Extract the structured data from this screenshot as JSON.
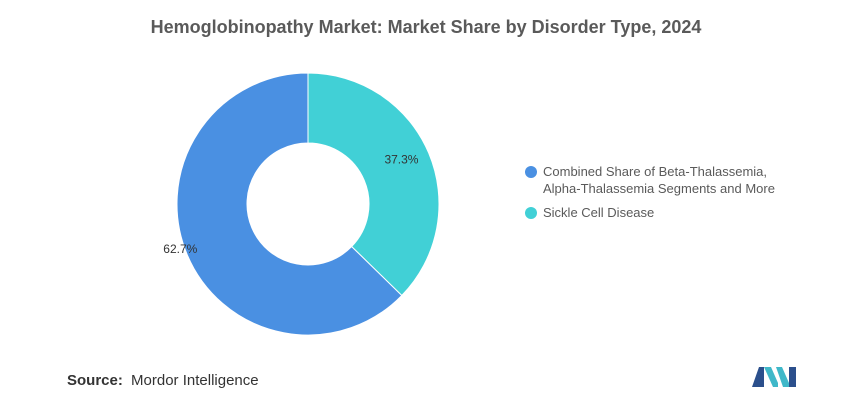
{
  "title": "Hemoglobinopathy Market: Market Share by Disorder Type, 2024",
  "source": {
    "label": "Source:",
    "value": "Mordor Intelligence"
  },
  "logo_icon": "mordor-intelligence-logo",
  "chart_data": {
    "type": "pie",
    "donut": true,
    "title": "Hemoglobinopathy Market: Market Share by Disorder Type, 2024",
    "legend_position": "right",
    "slices": [
      {
        "label": "Combined Share of Beta-Thalassemia, Alpha-Thalassemia Segments and More",
        "value": 62.7,
        "display": "62.7%",
        "color": "#4a90e2"
      },
      {
        "label": "Sickle Cell Disease",
        "value": 37.3,
        "display": "37.3%",
        "color": "#41d0d6"
      }
    ]
  }
}
